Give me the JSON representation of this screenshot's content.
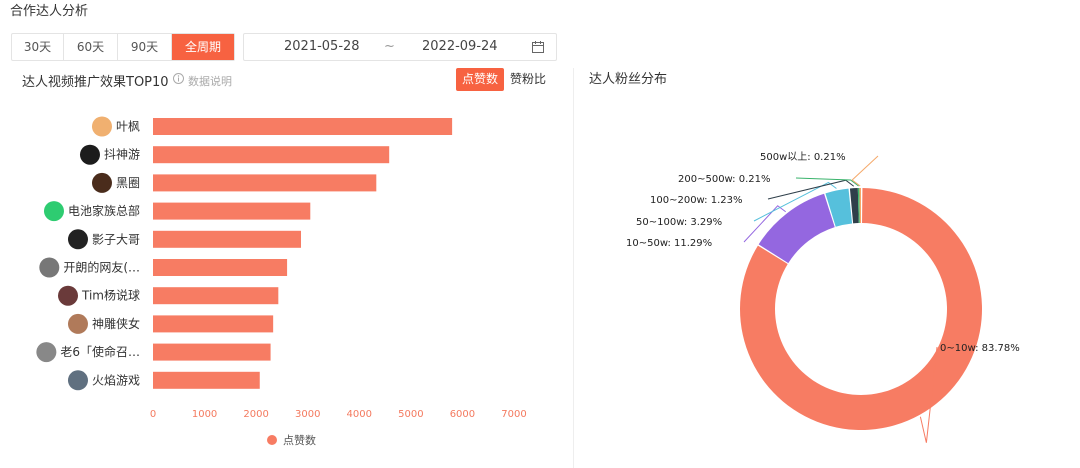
{
  "page_title": "合作达人分析",
  "period_buttons": [
    "30天",
    "60天",
    "90天",
    "全周期"
  ],
  "date_range": {
    "start": "2021-05-28",
    "separator": "~",
    "end": "2022-09-24"
  },
  "left_panel": {
    "title": "达人视频推广效果TOP10",
    "info_label": "数据说明",
    "toggle": [
      "点赞数",
      "赞粉比"
    ]
  },
  "right_panel": {
    "title": "达人粉丝分布"
  },
  "colors": {
    "accent": "#f76241",
    "bar": "#f77c63",
    "purple": "#9467e0",
    "cyan": "#56c0dc",
    "dark": "#2f3f4a",
    "green": "#39b36b"
  },
  "chart_data": [
    {
      "type": "bar",
      "orientation": "horizontal",
      "categories": [
        "叶枫",
        "抖神游",
        "黑圈",
        "电池家族总部",
        "影子大哥",
        "开朗的网友(…",
        "Tim杨说球",
        "神雕侠女",
        "老6「使命召…",
        "火焰游戏"
      ],
      "series": [
        {
          "name": "点赞数",
          "values": [
            5800,
            4580,
            4330,
            3050,
            2870,
            2600,
            2430,
            2330,
            2280,
            2070
          ]
        }
      ],
      "xlim": [
        0,
        7000
      ],
      "xticks": [
        0,
        1000,
        2000,
        3000,
        4000,
        5000,
        6000,
        7000
      ],
      "legend": "bottom-center",
      "grid": false
    },
    {
      "type": "pie",
      "donut": true,
      "slices": [
        {
          "label": "0~10w: 83.78%",
          "value": 83.78,
          "color": "#f77c63"
        },
        {
          "label": "10~50w: 11.29%",
          "value": 11.29,
          "color": "#9467e0"
        },
        {
          "label": "50~100w: 3.29%",
          "value": 3.29,
          "color": "#56c0dc"
        },
        {
          "label": "100~200w: 1.23%",
          "value": 1.23,
          "color": "#2f3f4a"
        },
        {
          "label": "200~500w: 0.21%",
          "value": 0.21,
          "color": "#39b36b"
        },
        {
          "label": "500w以上: 0.21%",
          "value": 0.21,
          "color": "#f5a96a"
        }
      ]
    }
  ]
}
